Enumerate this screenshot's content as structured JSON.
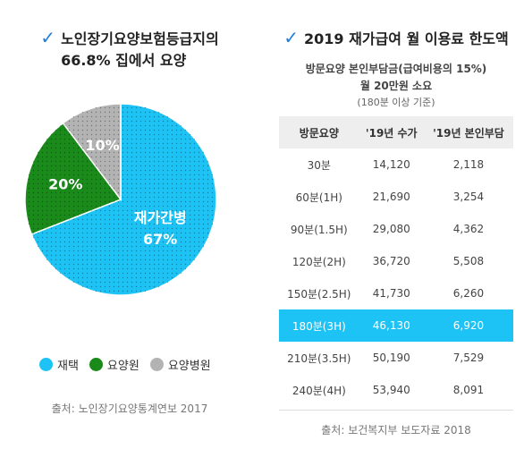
{
  "left": {
    "title_line1": "노인장기요양보험등급지의",
    "title_line2": "66.8% 집에서 요양",
    "source": "출처: 노인장기요양통계연보 2017",
    "legend": [
      {
        "label": "재택",
        "color": "#1ec3f5"
      },
      {
        "label": "요양원",
        "color": "#1a8a1a"
      },
      {
        "label": "요양병원",
        "color": "#b3b3b3"
      }
    ]
  },
  "chart_data": {
    "type": "pie",
    "slices": [
      {
        "label": "재가간병",
        "value": 67,
        "display": "67%",
        "color": "#1ec3f5"
      },
      {
        "label": "",
        "value": 20,
        "display": "20%",
        "color": "#1a8a1a"
      },
      {
        "label": "",
        "value": 10,
        "display": "10%",
        "color": "#b3b3b3"
      }
    ]
  },
  "right": {
    "title": "2019 재가급여 월 이용료 한도액",
    "subtitle1": "방문요양 본인부담금(급여비용의 15%)",
    "subtitle2": "월 20만원 소요",
    "subtitle3": "(180분 이상 기준)",
    "source": "출처: 보건복지부 보도자료 2018",
    "table": {
      "headers": [
        "방문요양",
        "'19년 수가",
        "'19년 본인부담"
      ],
      "rows": [
        [
          "30분",
          "14,120",
          "2,118"
        ],
        [
          "60분(1H)",
          "21,690",
          "3,254"
        ],
        [
          "90분(1.5H)",
          "29,080",
          "4,362"
        ],
        [
          "120분(2H)",
          "36,720",
          "5,508"
        ],
        [
          "150분(2.5H)",
          "41,730",
          "6,260"
        ],
        [
          "180분(3H)",
          "46,130",
          "6,920"
        ],
        [
          "210분(3.5H)",
          "50,190",
          "7,529"
        ],
        [
          "240분(4H)",
          "53,940",
          "8,091"
        ]
      ],
      "highlight_row": 5,
      "highlight_color": "#1ec3f5"
    }
  },
  "icons": {
    "check": "check-icon"
  }
}
